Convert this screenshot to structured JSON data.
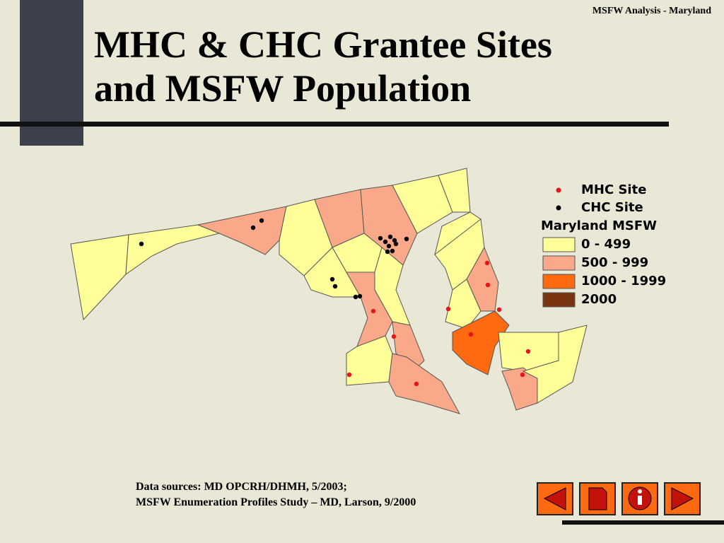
{
  "header": {
    "label": "MSFW Analysis - Maryland"
  },
  "title": {
    "lines": [
      "MHC & CHC Grantee Sites",
      "and MSFW Population"
    ]
  },
  "legend": {
    "sites": [
      {
        "label": "MHC Site",
        "color": "#e8141b"
      },
      {
        "label": "CHC Site",
        "color": "#000000"
      }
    ],
    "title": "Maryland MSFW",
    "classes": [
      {
        "label": "0 - 499",
        "color": "#ffff99"
      },
      {
        "label": "500 - 999",
        "color": "#f9a98a"
      },
      {
        "label": "1000 - 1999",
        "color": "#ff6a10"
      },
      {
        "label": "2000",
        "color": "#7a3510"
      }
    ]
  },
  "sources": {
    "lines": [
      "Data sources: MD OPCRH/DHMH, 5/2003;",
      "MSFW Enumeration Profiles Study – MD, Larson, 9/2000"
    ]
  }
}
